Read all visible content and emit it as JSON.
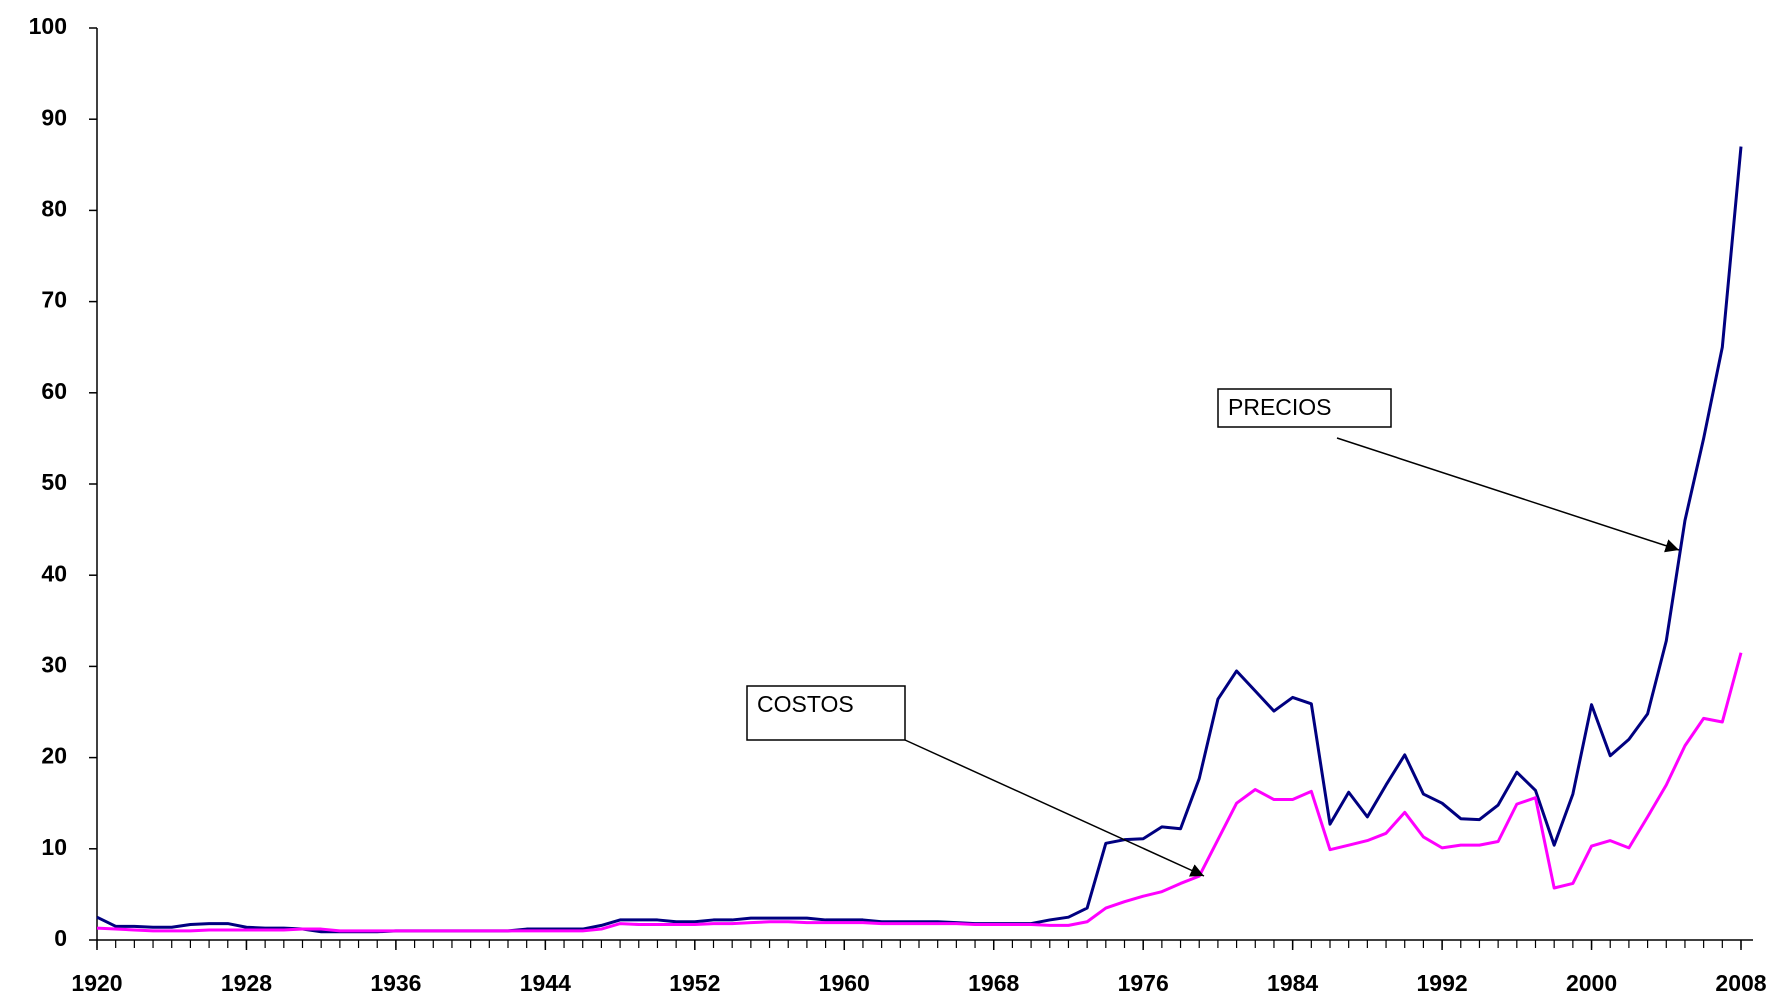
{
  "chart_data": {
    "type": "line",
    "x": [
      1920,
      1921,
      1922,
      1923,
      1924,
      1925,
      1926,
      1927,
      1928,
      1929,
      1930,
      1931,
      1932,
      1933,
      1934,
      1935,
      1936,
      1937,
      1938,
      1939,
      1940,
      1941,
      1942,
      1943,
      1944,
      1945,
      1946,
      1947,
      1948,
      1949,
      1950,
      1951,
      1952,
      1953,
      1954,
      1955,
      1956,
      1957,
      1958,
      1959,
      1960,
      1961,
      1962,
      1963,
      1964,
      1965,
      1966,
      1967,
      1968,
      1969,
      1970,
      1971,
      1972,
      1973,
      1974,
      1975,
      1976,
      1977,
      1978,
      1979,
      1980,
      1981,
      1982,
      1983,
      1984,
      1985,
      1986,
      1987,
      1988,
      1989,
      1990,
      1991,
      1992,
      1993,
      1994,
      1995,
      1996,
      1997,
      1998,
      1999,
      2000,
      2001,
      2002,
      2003,
      2004,
      2005,
      2006,
      2007,
      2008
    ],
    "series": [
      {
        "name": "PRECIOS",
        "color": "#000080",
        "values": [
          2.5,
          1.5,
          1.5,
          1.4,
          1.4,
          1.7,
          1.8,
          1.8,
          1.4,
          1.3,
          1.3,
          1.2,
          0.9,
          0.9,
          0.9,
          0.9,
          1.0,
          1.0,
          1.0,
          1.0,
          1.0,
          1.0,
          1.0,
          1.2,
          1.2,
          1.2,
          1.2,
          1.6,
          2.2,
          2.2,
          2.2,
          2.0,
          2.0,
          2.2,
          2.2,
          2.4,
          2.4,
          2.4,
          2.4,
          2.2,
          2.2,
          2.2,
          2.0,
          2.0,
          2.0,
          2.0,
          1.9,
          1.8,
          1.8,
          1.8,
          1.8,
          2.2,
          2.5,
          3.5,
          10.6,
          11.0,
          11.1,
          12.4,
          12.2,
          17.7,
          26.4,
          29.5,
          27.3,
          25.1,
          26.6,
          25.9,
          12.7,
          16.2,
          13.5,
          17.0,
          20.3,
          16.0,
          15.0,
          13.3,
          13.2,
          14.8,
          18.4,
          16.4,
          10.4,
          16.0,
          25.8,
          20.2,
          22.0,
          24.8,
          32.8,
          46.0,
          55.0,
          65.0,
          87.0
        ]
      },
      {
        "name": "COSTOS",
        "color": "#ff00ff",
        "values": [
          1.3,
          1.2,
          1.1,
          1.0,
          1.0,
          1.0,
          1.1,
          1.1,
          1.1,
          1.1,
          1.1,
          1.2,
          1.2,
          1.0,
          1.0,
          1.0,
          1.0,
          1.0,
          1.0,
          1.0,
          1.0,
          1.0,
          1.0,
          1.0,
          1.0,
          1.0,
          1.0,
          1.2,
          1.8,
          1.7,
          1.7,
          1.7,
          1.7,
          1.8,
          1.8,
          1.9,
          2.0,
          2.0,
          1.9,
          1.9,
          1.9,
          1.9,
          1.8,
          1.8,
          1.8,
          1.8,
          1.8,
          1.7,
          1.7,
          1.7,
          1.7,
          1.6,
          1.6,
          2.0,
          3.5,
          4.2,
          4.8,
          5.3,
          6.2,
          7.0,
          11.0,
          15.0,
          16.5,
          15.4,
          15.4,
          16.3,
          9.9,
          10.4,
          10.9,
          11.7,
          14.0,
          11.3,
          10.1,
          10.4,
          10.4,
          10.8,
          14.9,
          15.6,
          5.7,
          6.2,
          10.3,
          10.9,
          10.1,
          13.5,
          17.0,
          21.3,
          24.3,
          23.9,
          31.5
        ]
      }
    ],
    "xlim": [
      1920,
      2008
    ],
    "xticks": [
      1920,
      1928,
      1936,
      1944,
      1952,
      1960,
      1968,
      1976,
      1984,
      1992,
      2000,
      2008
    ],
    "ylim": [
      0,
      100
    ],
    "yticks": [
      0,
      10,
      20,
      30,
      40,
      50,
      60,
      70,
      80,
      90,
      100
    ],
    "annotations": [
      "PRECIOS",
      "COSTOS"
    ]
  }
}
